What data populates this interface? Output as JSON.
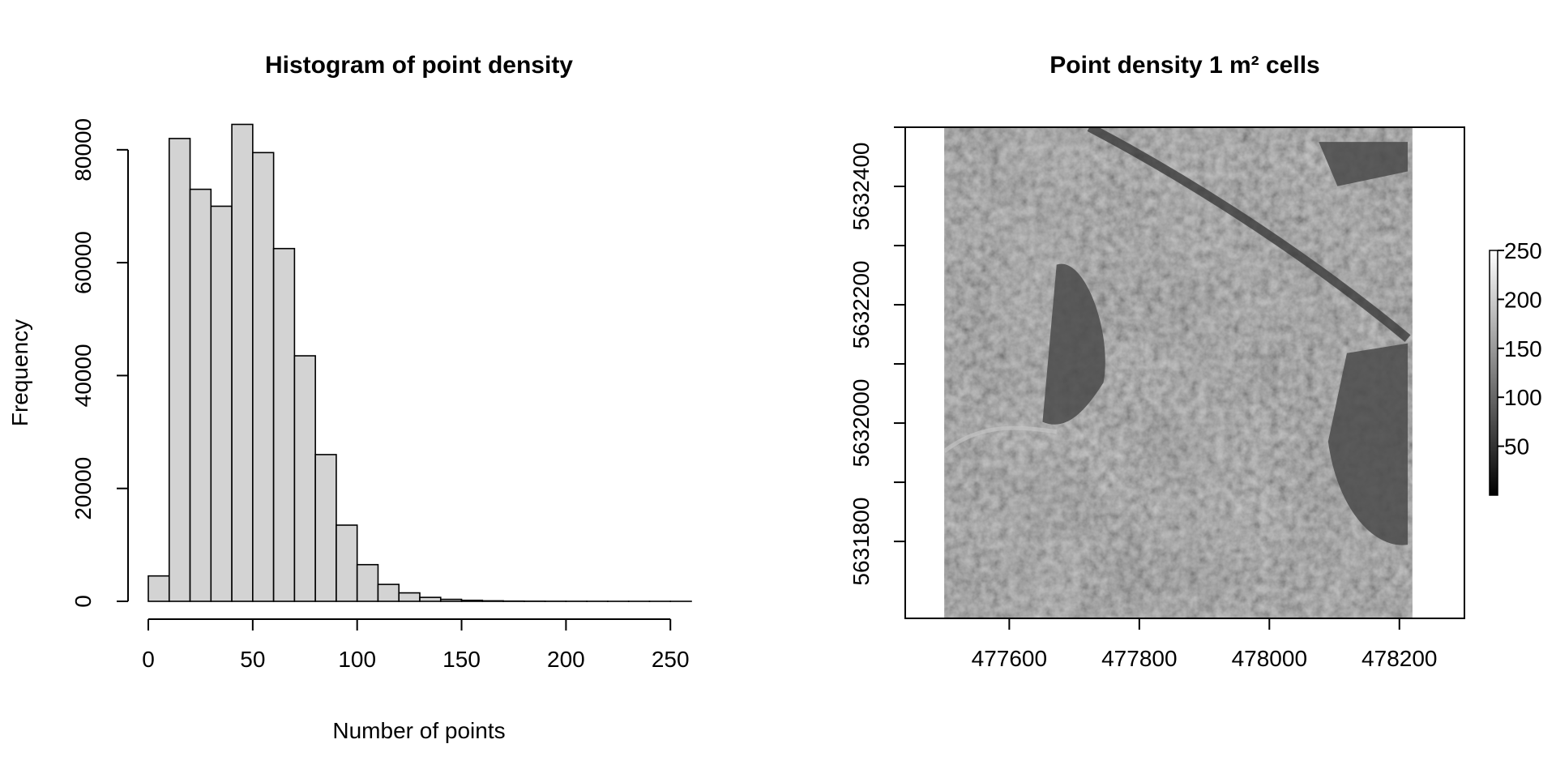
{
  "chart_data": [
    {
      "type": "bar",
      "title": "Histogram of point density",
      "xlabel": "Number of points",
      "ylabel": "Frequency",
      "xlim": [
        0,
        260
      ],
      "ylim": [
        0,
        85000
      ],
      "bin_width": 10,
      "bin_starts": [
        0,
        10,
        20,
        30,
        40,
        50,
        60,
        70,
        80,
        90,
        100,
        110,
        120,
        130,
        140,
        150,
        160,
        170,
        180,
        190,
        200,
        210,
        220,
        230,
        240,
        250
      ],
      "values": [
        4500,
        82000,
        73000,
        70000,
        84500,
        79500,
        62500,
        43500,
        26000,
        13500,
        6500,
        3000,
        1500,
        700,
        350,
        180,
        90,
        40,
        25,
        15,
        10,
        8,
        5,
        4,
        3,
        2
      ],
      "x_ticks": [
        "0",
        "50",
        "100",
        "150",
        "200",
        "250"
      ],
      "x_tick_values": [
        0,
        50,
        100,
        150,
        200,
        250
      ],
      "y_ticks": [
        "0",
        "20000",
        "40000",
        "60000",
        "80000"
      ],
      "y_tick_values": [
        0,
        20000,
        40000,
        60000,
        80000
      ],
      "bar_color": "#d3d3d3"
    },
    {
      "type": "heatmap",
      "title": "Point density 1 m² cells",
      "xlim": [
        477440,
        478300
      ],
      "ylim": [
        5631670,
        5632500
      ],
      "x_ticks": [
        "477600",
        "477800",
        "478000",
        "478200"
      ],
      "x_tick_values": [
        477600,
        477800,
        478000,
        478200
      ],
      "y_ticks": [
        "5631800",
        "5632000",
        "5632200",
        "5632400"
      ],
      "y_tick_values": [
        5631800,
        5632000,
        5632200,
        5632400
      ],
      "y_minor_tick_values": [
        5631900,
        5632100,
        5632300
      ],
      "raster_extent": {
        "xmin": 477500,
        "xmax": 478220,
        "ymin": 5631670,
        "ymax": 5632500
      },
      "colorscale": "grayscale",
      "legend": {
        "placement": "right",
        "range": [
          0,
          250
        ],
        "ticks": [
          "50",
          "100",
          "150",
          "200",
          "250"
        ],
        "tick_values": [
          50,
          100,
          150,
          200,
          250
        ]
      }
    }
  ]
}
